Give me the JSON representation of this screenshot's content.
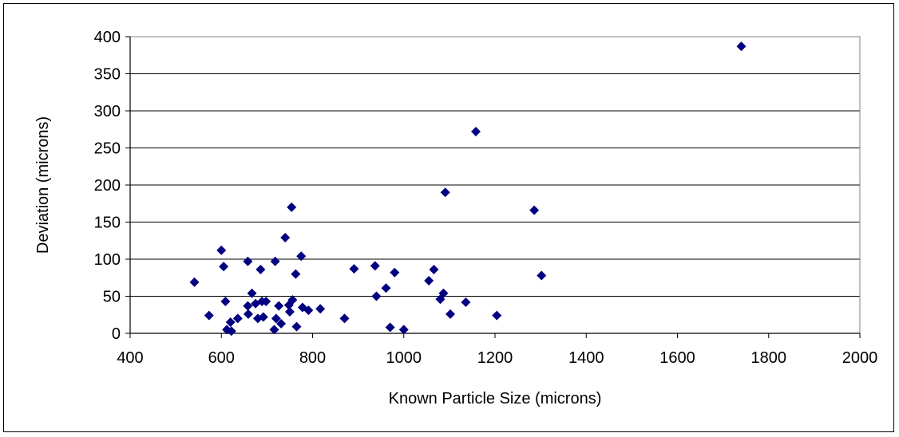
{
  "chart_data": {
    "type": "scatter",
    "title": "",
    "xlabel": "Known Particle Size (microns)",
    "ylabel": "Deviation (microns)",
    "xlim": [
      400,
      2000
    ],
    "ylim": [
      0,
      400
    ],
    "xticks": [
      "400",
      "600",
      "800",
      "1000",
      "1200",
      "1400",
      "1600",
      "1800",
      "2000"
    ],
    "yticks": [
      "0",
      "50",
      "100",
      "150",
      "200",
      "250",
      "300",
      "350",
      "400"
    ],
    "grid": "horizontal",
    "legend": "none",
    "marker": "diamond",
    "marker_color": "#000080",
    "series": [
      {
        "points": [
          [
            541,
            69
          ],
          [
            573,
            24
          ],
          [
            600,
            112
          ],
          [
            605,
            90
          ],
          [
            609,
            43
          ],
          [
            612,
            5
          ],
          [
            620,
            15
          ],
          [
            622,
            3
          ],
          [
            636,
            20
          ],
          [
            658,
            97
          ],
          [
            658,
            37
          ],
          [
            659,
            26
          ],
          [
            667,
            54
          ],
          [
            675,
            40
          ],
          [
            680,
            20
          ],
          [
            686,
            86
          ],
          [
            689,
            43
          ],
          [
            692,
            22
          ],
          [
            698,
            43
          ],
          [
            716,
            5
          ],
          [
            718,
            97
          ],
          [
            720,
            20
          ],
          [
            726,
            37
          ],
          [
            731,
            13
          ],
          [
            740,
            129
          ],
          [
            748,
            38
          ],
          [
            750,
            29
          ],
          [
            754,
            170
          ],
          [
            756,
            45
          ],
          [
            763,
            80
          ],
          [
            765,
            9
          ],
          [
            775,
            104
          ],
          [
            778,
            35
          ],
          [
            791,
            31
          ],
          [
            817,
            33
          ],
          [
            870,
            20
          ],
          [
            891,
            87
          ],
          [
            937,
            91
          ],
          [
            940,
            50
          ],
          [
            961,
            61
          ],
          [
            970,
            8
          ],
          [
            980,
            82
          ],
          [
            1000,
            5
          ],
          [
            1055,
            71
          ],
          [
            1066,
            86
          ],
          [
            1080,
            46
          ],
          [
            1087,
            54
          ],
          [
            1091,
            190
          ],
          [
            1102,
            26
          ],
          [
            1136,
            42
          ],
          [
            1158,
            272
          ],
          [
            1204,
            24
          ],
          [
            1286,
            166
          ],
          [
            1302,
            78
          ],
          [
            1740,
            387
          ]
        ]
      }
    ]
  }
}
